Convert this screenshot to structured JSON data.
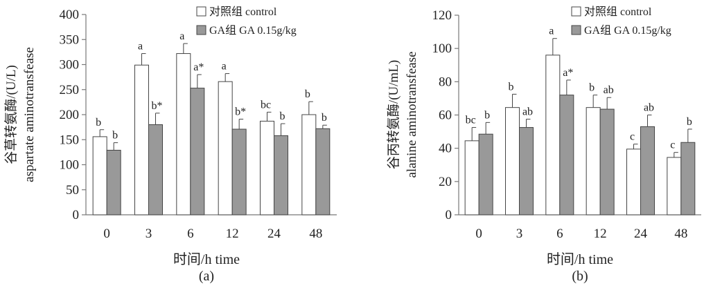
{
  "chart_data": [
    {
      "type": "bar",
      "panel_label": "(a)",
      "categories": [
        "0",
        "3",
        "6",
        "12",
        "24",
        "48"
      ],
      "xlabel": "时间/h time",
      "ylabel_line1": "谷草转氨酶/(U/L)",
      "ylabel_line2": "aspartate aminotransfease",
      "ylim": [
        0,
        400
      ],
      "yticks": [
        "0",
        "50",
        "100",
        "150",
        "200",
        "250",
        "300",
        "350",
        "400"
      ],
      "legend_position": "top-right",
      "series": [
        {
          "name": "对照组 control",
          "color": "#ffffff",
          "values": [
            156,
            299,
            322,
            266,
            187,
            200
          ],
          "errors": [
            14,
            23,
            20,
            16,
            18,
            26
          ],
          "sig_labels": [
            "b",
            "a",
            "a",
            "a",
            "bc",
            "b"
          ]
        },
        {
          "name": "GA组 GA 0.15g/kg",
          "color": "#999999",
          "values": [
            129,
            180,
            253,
            171,
            158,
            172
          ],
          "errors": [
            15,
            23,
            27,
            20,
            24,
            7
          ],
          "sig_labels": [
            "b",
            "b*",
            "a*",
            "b*",
            "b",
            "b"
          ]
        }
      ]
    },
    {
      "type": "bar",
      "panel_label": "(b)",
      "categories": [
        "0",
        "3",
        "6",
        "12",
        "24",
        "48"
      ],
      "xlabel": "时间/h time",
      "ylabel_line1": "谷丙转氨酶/(U/mL)",
      "ylabel_line2": "alanine aminotransfease",
      "ylim": [
        0,
        120
      ],
      "yticks": [
        "0",
        "20",
        "40",
        "60",
        "80",
        "100",
        "120"
      ],
      "legend_position": "top-right",
      "series": [
        {
          "name": "对照组 control",
          "color": "#ffffff",
          "values": [
            44.5,
            64.5,
            96,
            64.5,
            39.5,
            34.5
          ],
          "errors": [
            8,
            8,
            10,
            7.5,
            3,
            3
          ],
          "sig_labels": [
            "bc",
            "b",
            "a",
            "b",
            "c",
            "c"
          ]
        },
        {
          "name": "GA组 GA 0.15g/kg",
          "color": "#999999",
          "values": [
            48.5,
            52.5,
            72,
            63.5,
            53,
            43.5
          ],
          "errors": [
            7,
            5,
            9,
            7,
            7,
            8
          ],
          "sig_labels": [
            "b",
            "ab",
            "a*",
            "ab",
            "ab",
            "b"
          ]
        }
      ]
    }
  ]
}
